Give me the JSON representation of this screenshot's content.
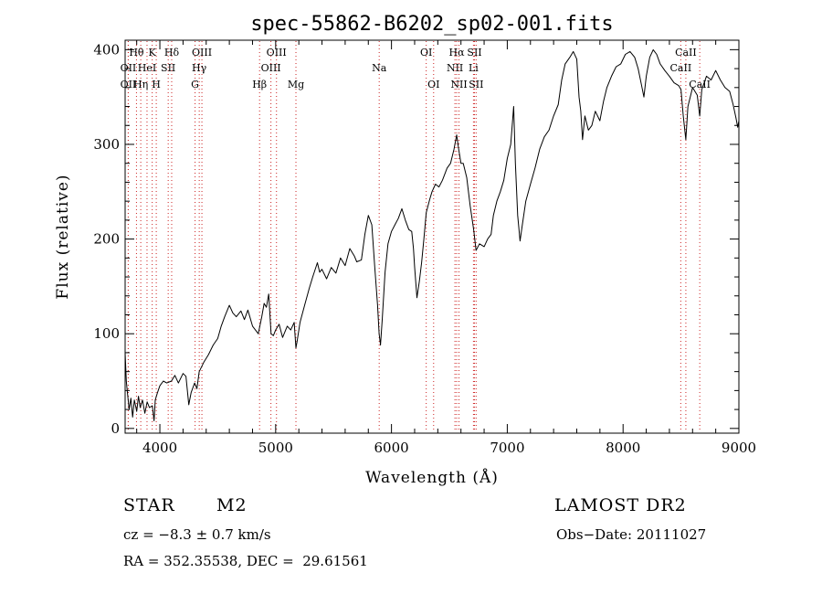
{
  "chart_data": {
    "type": "line",
    "title": "spec-55862-B6202_sp02-001.fits",
    "xlabel": "Wavelength (Å)",
    "ylabel": "Flux (relative)",
    "xlim": [
      3700,
      9000
    ],
    "ylim": [
      -5,
      410
    ],
    "x_ticks": [
      4000,
      5000,
      6000,
      7000,
      8000,
      9000
    ],
    "y_ticks": [
      0,
      100,
      200,
      300,
      400
    ],
    "grid": false,
    "line_color": "#000000",
    "spectral_line_color": "#cc2222",
    "series": [
      {
        "points": [
          [
            3700,
            80
          ],
          [
            3710,
            50
          ],
          [
            3720,
            38
          ],
          [
            3735,
            20
          ],
          [
            3750,
            32
          ],
          [
            3765,
            12
          ],
          [
            3780,
            30
          ],
          [
            3800,
            18
          ],
          [
            3815,
            34
          ],
          [
            3830,
            22
          ],
          [
            3850,
            30
          ],
          [
            3870,
            16
          ],
          [
            3890,
            28
          ],
          [
            3910,
            22
          ],
          [
            3935,
            24
          ],
          [
            3950,
            8
          ],
          [
            3960,
            30
          ],
          [
            3980,
            38
          ],
          [
            4000,
            45
          ],
          [
            4030,
            50
          ],
          [
            4060,
            48
          ],
          [
            4100,
            50
          ],
          [
            4130,
            56
          ],
          [
            4160,
            48
          ],
          [
            4200,
            58
          ],
          [
            4225,
            55
          ],
          [
            4250,
            25
          ],
          [
            4270,
            38
          ],
          [
            4300,
            48
          ],
          [
            4320,
            42
          ],
          [
            4340,
            60
          ],
          [
            4380,
            70
          ],
          [
            4420,
            78
          ],
          [
            4460,
            88
          ],
          [
            4500,
            95
          ],
          [
            4530,
            108
          ],
          [
            4560,
            118
          ],
          [
            4600,
            130
          ],
          [
            4630,
            122
          ],
          [
            4660,
            118
          ],
          [
            4700,
            124
          ],
          [
            4730,
            115
          ],
          [
            4760,
            125
          ],
          [
            4800,
            108
          ],
          [
            4850,
            100
          ],
          [
            4880,
            118
          ],
          [
            4900,
            132
          ],
          [
            4920,
            128
          ],
          [
            4940,
            142
          ],
          [
            4960,
            100
          ],
          [
            4980,
            98
          ],
          [
            5000,
            104
          ],
          [
            5030,
            110
          ],
          [
            5060,
            96
          ],
          [
            5100,
            108
          ],
          [
            5130,
            104
          ],
          [
            5160,
            112
          ],
          [
            5175,
            85
          ],
          [
            5185,
            92
          ],
          [
            5210,
            112
          ],
          [
            5250,
            130
          ],
          [
            5290,
            148
          ],
          [
            5320,
            160
          ],
          [
            5360,
            175
          ],
          [
            5380,
            165
          ],
          [
            5400,
            168
          ],
          [
            5440,
            158
          ],
          [
            5480,
            170
          ],
          [
            5520,
            164
          ],
          [
            5560,
            180
          ],
          [
            5600,
            172
          ],
          [
            5640,
            190
          ],
          [
            5680,
            182
          ],
          [
            5700,
            176
          ],
          [
            5740,
            178
          ],
          [
            5770,
            205
          ],
          [
            5800,
            225
          ],
          [
            5830,
            215
          ],
          [
            5855,
            172
          ],
          [
            5880,
            130
          ],
          [
            5893,
            100
          ],
          [
            5905,
            88
          ],
          [
            5920,
            115
          ],
          [
            5945,
            165
          ],
          [
            5970,
            195
          ],
          [
            6000,
            208
          ],
          [
            6030,
            215
          ],
          [
            6060,
            222
          ],
          [
            6090,
            232
          ],
          [
            6120,
            220
          ],
          [
            6150,
            210
          ],
          [
            6175,
            208
          ],
          [
            6190,
            190
          ],
          [
            6200,
            170
          ],
          [
            6220,
            138
          ],
          [
            6240,
            155
          ],
          [
            6260,
            175
          ],
          [
            6280,
            200
          ],
          [
            6300,
            228
          ],
          [
            6330,
            242
          ],
          [
            6350,
            250
          ],
          [
            6380,
            258
          ],
          [
            6410,
            255
          ],
          [
            6440,
            262
          ],
          [
            6480,
            275
          ],
          [
            6510,
            280
          ],
          [
            6540,
            295
          ],
          [
            6563,
            310
          ],
          [
            6580,
            295
          ],
          [
            6600,
            280
          ],
          [
            6620,
            280
          ],
          [
            6650,
            265
          ],
          [
            6680,
            235
          ],
          [
            6710,
            210
          ],
          [
            6730,
            188
          ],
          [
            6760,
            195
          ],
          [
            6800,
            192
          ],
          [
            6830,
            200
          ],
          [
            6860,
            205
          ],
          [
            6880,
            225
          ],
          [
            6910,
            240
          ],
          [
            6940,
            250
          ],
          [
            6970,
            262
          ],
          [
            7000,
            285
          ],
          [
            7030,
            300
          ],
          [
            7055,
            340
          ],
          [
            7070,
            280
          ],
          [
            7090,
            225
          ],
          [
            7110,
            198
          ],
          [
            7130,
            215
          ],
          [
            7160,
            240
          ],
          [
            7200,
            258
          ],
          [
            7240,
            275
          ],
          [
            7280,
            295
          ],
          [
            7320,
            308
          ],
          [
            7360,
            315
          ],
          [
            7400,
            330
          ],
          [
            7440,
            342
          ],
          [
            7470,
            368
          ],
          [
            7500,
            385
          ],
          [
            7540,
            392
          ],
          [
            7570,
            398
          ],
          [
            7600,
            390
          ],
          [
            7620,
            350
          ],
          [
            7635,
            335
          ],
          [
            7650,
            305
          ],
          [
            7670,
            330
          ],
          [
            7700,
            315
          ],
          [
            7730,
            320
          ],
          [
            7760,
            335
          ],
          [
            7800,
            325
          ],
          [
            7830,
            345
          ],
          [
            7860,
            360
          ],
          [
            7900,
            372
          ],
          [
            7940,
            382
          ],
          [
            7980,
            385
          ],
          [
            8020,
            395
          ],
          [
            8060,
            398
          ],
          [
            8100,
            392
          ],
          [
            8130,
            380
          ],
          [
            8160,
            362
          ],
          [
            8180,
            350
          ],
          [
            8200,
            372
          ],
          [
            8230,
            392
          ],
          [
            8260,
            400
          ],
          [
            8290,
            395
          ],
          [
            8320,
            385
          ],
          [
            8360,
            378
          ],
          [
            8400,
            372
          ],
          [
            8440,
            365
          ],
          [
            8480,
            362
          ],
          [
            8500,
            358
          ],
          [
            8520,
            330
          ],
          [
            8542,
            305
          ],
          [
            8560,
            340
          ],
          [
            8600,
            360
          ],
          [
            8640,
            352
          ],
          [
            8662,
            330
          ],
          [
            8680,
            358
          ],
          [
            8720,
            372
          ],
          [
            8760,
            368
          ],
          [
            8800,
            378
          ],
          [
            8840,
            368
          ],
          [
            8880,
            360
          ],
          [
            8920,
            356
          ],
          [
            8950,
            342
          ],
          [
            8975,
            328
          ],
          [
            8990,
            318
          ],
          [
            9000,
            325
          ]
        ]
      }
    ],
    "spectral_lines": [
      {
        "label": "Hθ",
        "wavelength": 3798,
        "row": 0
      },
      {
        "label": "OII",
        "wavelength": 3727,
        "row": 1
      },
      {
        "label": "OII",
        "wavelength": 3727,
        "row": 2
      },
      {
        "label": "Hη",
        "wavelength": 3835,
        "row": 2
      },
      {
        "label": "HeI",
        "wavelength": 3889,
        "row": 1
      },
      {
        "label": "K",
        "wavelength": 3934,
        "row": 0
      },
      {
        "label": "H",
        "wavelength": 3969,
        "row": 2
      },
      {
        "label": "SII",
        "wavelength": 4072,
        "row": 1
      },
      {
        "label": "Hδ",
        "wavelength": 4102,
        "row": 0
      },
      {
        "label": "OIII",
        "wavelength": 4363,
        "row": 0
      },
      {
        "label": "Hγ",
        "wavelength": 4340,
        "row": 1
      },
      {
        "label": "G",
        "wavelength": 4304,
        "row": 2
      },
      {
        "label": "Hβ",
        "wavelength": 4861,
        "row": 2
      },
      {
        "label": "OIII",
        "wavelength": 4959,
        "row": 1
      },
      {
        "label": "OIII",
        "wavelength": 5007,
        "row": 0
      },
      {
        "label": "Mg",
        "wavelength": 5175,
        "row": 2
      },
      {
        "label": "Na",
        "wavelength": 5894,
        "row": 1
      },
      {
        "label": "OI",
        "wavelength": 6300,
        "row": 0
      },
      {
        "label": "OI",
        "wavelength": 6364,
        "row": 2
      },
      {
        "label": "NII",
        "wavelength": 6548,
        "row": 1
      },
      {
        "label": "NII",
        "wavelength": 6583,
        "row": 2
      },
      {
        "label": "Hα",
        "wavelength": 6563,
        "row": 0
      },
      {
        "label": "SII",
        "wavelength": 6717,
        "row": 0
      },
      {
        "label": "Li",
        "wavelength": 6708,
        "row": 1
      },
      {
        "label": "SII",
        "wavelength": 6731,
        "row": 2
      },
      {
        "label": "CaII",
        "wavelength": 8542,
        "row": 0
      },
      {
        "label": "CaII",
        "wavelength": 8498,
        "row": 1
      },
      {
        "label": "CaII",
        "wavelength": 8662,
        "row": 2
      }
    ]
  },
  "footer": {
    "object_class": "STAR",
    "subclass": "M2",
    "redshift": "cz = −8.3 ± 0.7 km/s",
    "coordinates": "RA = 352.35538, DEC =  29.61561",
    "survey": "LAMOST DR2",
    "obs_date": "Obs−Date: 20111027"
  }
}
